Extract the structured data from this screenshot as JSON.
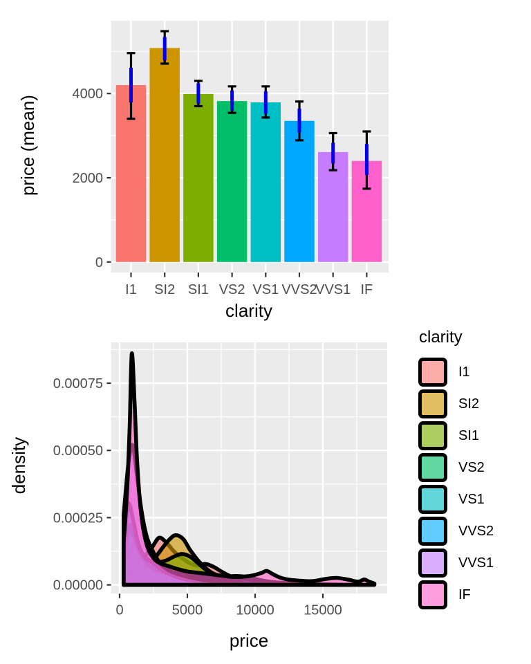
{
  "figure": {
    "background": "#FFFFFF",
    "panel_background": "#EBEBEB",
    "grid_color": "#FFFFFF",
    "tick_mark_color": "#333333",
    "tick_label_color": "#4D4D4D",
    "axis_title_color": "#000000"
  },
  "palette": {
    "I1": "#F8766D",
    "SI2": "#CD9600",
    "SI1": "#7CAE00",
    "VS2": "#00BE67",
    "VS1": "#00BFC4",
    "VVS2": "#00A9FF",
    "VVS1": "#C77CFF",
    "IF": "#FF61CC"
  },
  "chart_data": [
    {
      "type": "bar",
      "title": "",
      "xlabel": "clarity",
      "ylabel": "price (mean)",
      "categories": [
        "I1",
        "SI2",
        "SI1",
        "VS2",
        "VS1",
        "VVS2",
        "VVS1",
        "IF"
      ],
      "values": [
        4200,
        5080,
        3990,
        3820,
        3790,
        3350,
        2610,
        2400
      ],
      "bar_colors": [
        "#F8766D",
        "#CD9600",
        "#7CAE00",
        "#00BE67",
        "#00BFC4",
        "#00A9FF",
        "#C77CFF",
        "#FF61CC"
      ],
      "error_outer": [
        [
          3400,
          4960
        ],
        [
          4710,
          5480
        ],
        [
          3700,
          4300
        ],
        [
          3540,
          4170
        ],
        [
          3430,
          4170
        ],
        [
          2890,
          3810
        ],
        [
          2180,
          3060
        ],
        [
          1740,
          3100
        ]
      ],
      "error_inner": [
        [
          3790,
          4610
        ],
        [
          4790,
          5340
        ],
        [
          3760,
          4240
        ],
        [
          3600,
          4070
        ],
        [
          3520,
          4050
        ],
        [
          3080,
          3640
        ],
        [
          2340,
          2830
        ],
        [
          2070,
          2800
        ]
      ],
      "error_outer_color": "#000000",
      "error_inner_color": "#0000EE",
      "yticks": [
        0,
        2000,
        4000
      ],
      "ytick_labels": [
        "0",
        "2000",
        "4000"
      ],
      "yticks_minor": [
        1000,
        3000,
        5000
      ],
      "ylim": [
        -210,
        5730
      ],
      "grid": true,
      "legend_position": "none"
    },
    {
      "type": "density",
      "title": "",
      "xlabel": "price",
      "ylabel": "density",
      "xticks": [
        0,
        5000,
        10000,
        15000
      ],
      "xtick_labels": [
        "0",
        "5000",
        "10000",
        "15000"
      ],
      "xticks_minor": [
        2500,
        7500,
        12500,
        17500
      ],
      "yticks": [
        0,
        0.00025,
        0.0005,
        0.00075
      ],
      "ytick_labels": [
        "0.00000",
        "0.00025",
        "0.00050",
        "0.00075"
      ],
      "yticks_minor": [
        0.000125,
        0.000375,
        0.000625,
        0.000875
      ],
      "xlim": [
        -650,
        19750
      ],
      "ylim": [
        -3.3e-05,
        0.0009
      ],
      "fill_alpha": 0.62,
      "outline_color": "#000000",
      "outline_width": 5.6,
      "legend_title": "clarity",
      "legend_position": "right",
      "density_scale": 1e-06,
      "series": [
        {
          "name": "I1",
          "color": "#F8766D",
          "points": [
            [
              300,
              20
            ],
            [
              700,
              50
            ],
            [
              1200,
              80
            ],
            [
              1800,
              105
            ],
            [
              2400,
              140
            ],
            [
              2900,
              175
            ],
            [
              3400,
              160
            ],
            [
              4000,
              125
            ],
            [
              4600,
              100
            ],
            [
              5200,
              80
            ],
            [
              5800,
              72
            ],
            [
              6300,
              78
            ],
            [
              6900,
              68
            ],
            [
              7500,
              50
            ],
            [
              8200,
              32
            ],
            [
              9000,
              20
            ],
            [
              10000,
              12
            ],
            [
              11000,
              7
            ],
            [
              12000,
              4
            ],
            [
              13000,
              2
            ],
            [
              14000,
              1
            ],
            [
              15000,
              0
            ]
          ]
        },
        {
          "name": "SI2",
          "color": "#CD9600",
          "points": [
            [
              300,
              10
            ],
            [
              800,
              30
            ],
            [
              1400,
              50
            ],
            [
              2000,
              70
            ],
            [
              2600,
              100
            ],
            [
              3200,
              140
            ],
            [
              3700,
              170
            ],
            [
              4150,
              185
            ],
            [
              4700,
              170
            ],
            [
              5200,
              130
            ],
            [
              5800,
              90
            ],
            [
              6400,
              60
            ],
            [
              7000,
              40
            ],
            [
              7800,
              28
            ],
            [
              8600,
              20
            ],
            [
              9500,
              15
            ],
            [
              10500,
              10
            ],
            [
              11500,
              8
            ],
            [
              12500,
              6
            ],
            [
              13500,
              4
            ],
            [
              15000,
              2
            ],
            [
              16000,
              1
            ],
            [
              17000,
              0
            ]
          ]
        },
        {
          "name": "SI1",
          "color": "#7CAE00",
          "points": [
            [
              300,
              60
            ],
            [
              700,
              120
            ],
            [
              1100,
              150
            ],
            [
              1600,
              120
            ],
            [
              2200,
              90
            ],
            [
              2800,
              85
            ],
            [
              3400,
              90
            ],
            [
              4000,
              105
            ],
            [
              4600,
              115
            ],
            [
              5200,
              105
            ],
            [
              5800,
              80
            ],
            [
              6400,
              55
            ],
            [
              7000,
              40
            ],
            [
              7800,
              28
            ],
            [
              8600,
              20
            ],
            [
              9500,
              14
            ],
            [
              10500,
              10
            ],
            [
              11500,
              7
            ],
            [
              12800,
              4
            ],
            [
              14000,
              2
            ],
            [
              15000,
              0
            ]
          ]
        },
        {
          "name": "VS2",
          "color": "#00BE67",
          "points": [
            [
              300,
              120
            ],
            [
              700,
              220
            ],
            [
              1100,
              190
            ],
            [
              1600,
              120
            ],
            [
              2200,
              80
            ],
            [
              2800,
              60
            ],
            [
              3500,
              50
            ],
            [
              4300,
              45
            ],
            [
              5000,
              45
            ],
            [
              5700,
              42
            ],
            [
              6400,
              35
            ],
            [
              7000,
              28
            ],
            [
              7800,
              20
            ],
            [
              8600,
              16
            ],
            [
              9500,
              13
            ],
            [
              10500,
              10
            ],
            [
              11500,
              7
            ],
            [
              12500,
              5
            ],
            [
              13500,
              3
            ],
            [
              14500,
              2
            ],
            [
              15500,
              0
            ]
          ]
        },
        {
          "name": "VS1",
          "color": "#00BFC4",
          "points": [
            [
              300,
              100
            ],
            [
              700,
              210
            ],
            [
              1100,
              170
            ],
            [
              1600,
              110
            ],
            [
              2200,
              70
            ],
            [
              3000,
              50
            ],
            [
              3800,
              40
            ],
            [
              4600,
              35
            ],
            [
              5400,
              30
            ],
            [
              6200,
              28
            ],
            [
              7000,
              28
            ],
            [
              7800,
              30
            ],
            [
              8600,
              33
            ],
            [
              9300,
              30
            ],
            [
              10000,
              22
            ],
            [
              10800,
              14
            ],
            [
              11600,
              9
            ],
            [
              12500,
              6
            ],
            [
              13500,
              4
            ],
            [
              15000,
              2
            ],
            [
              16000,
              0
            ]
          ]
        },
        {
          "name": "VVS2",
          "color": "#00A9FF",
          "points": [
            [
              300,
              160
            ],
            [
              650,
              300
            ],
            [
              1000,
              240
            ],
            [
              1400,
              150
            ],
            [
              1900,
              100
            ],
            [
              2400,
              85
            ],
            [
              3000,
              60
            ],
            [
              3700,
              40
            ],
            [
              4500,
              25
            ],
            [
              5500,
              16
            ],
            [
              6500,
              13
            ],
            [
              7500,
              15
            ],
            [
              8500,
              20
            ],
            [
              9300,
              22
            ],
            [
              10000,
              18
            ],
            [
              11000,
              10
            ],
            [
              12000,
              6
            ],
            [
              13000,
              3
            ],
            [
              14000,
              1
            ],
            [
              15000,
              0
            ]
          ]
        },
        {
          "name": "VVS1",
          "color": "#C77CFF",
          "points": [
            [
              300,
              260
            ],
            [
              650,
              450
            ],
            [
              950,
              520
            ],
            [
              1250,
              420
            ],
            [
              1600,
              280
            ],
            [
              2000,
              180
            ],
            [
              2500,
              120
            ],
            [
              3000,
              80
            ],
            [
              3600,
              55
            ],
            [
              4300,
              40
            ],
            [
              5000,
              30
            ],
            [
              6000,
              20
            ],
            [
              7000,
              14
            ],
            [
              8000,
              10
            ],
            [
              9000,
              7
            ],
            [
              10000,
              5
            ],
            [
              11000,
              3
            ],
            [
              12000,
              2
            ],
            [
              13000,
              0
            ]
          ]
        },
        {
          "name": "IF",
          "color": "#FF61CC",
          "points": [
            [
              300,
              160
            ],
            [
              550,
              350
            ],
            [
              750,
              600
            ],
            [
              900,
              860
            ],
            [
              1100,
              680
            ],
            [
              1300,
              450
            ],
            [
              1600,
              260
            ],
            [
              2000,
              150
            ],
            [
              2500,
              100
            ],
            [
              3000,
              80
            ],
            [
              3600,
              70
            ],
            [
              4200,
              60
            ],
            [
              5000,
              50
            ],
            [
              5800,
              45
            ],
            [
              6600,
              40
            ],
            [
              7400,
              35
            ],
            [
              8200,
              30
            ],
            [
              9000,
              30
            ],
            [
              9800,
              35
            ],
            [
              10500,
              45
            ],
            [
              10850,
              52
            ],
            [
              11300,
              40
            ],
            [
              11800,
              28
            ],
            [
              12400,
              20
            ],
            [
              13200,
              16
            ],
            [
              14200,
              14
            ],
            [
              15200,
              22
            ],
            [
              16000,
              26
            ],
            [
              16800,
              20
            ],
            [
              17600,
              12
            ],
            [
              18050,
              20
            ],
            [
              18400,
              12
            ],
            [
              18800,
              5
            ]
          ]
        }
      ]
    }
  ],
  "legend": {
    "title": "clarity",
    "items": [
      "I1",
      "SI2",
      "SI1",
      "VS2",
      "VS1",
      "VVS2",
      "VVS1",
      "IF"
    ]
  }
}
